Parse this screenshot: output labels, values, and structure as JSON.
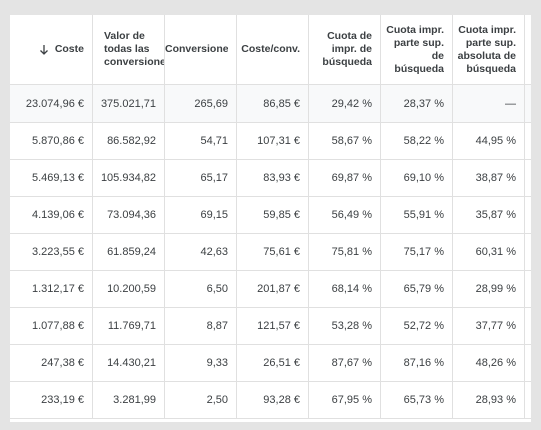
{
  "table": {
    "headers": [
      "Coste",
      "Valor de todas las conversiones",
      "Conversiones",
      "Coste/conv.",
      "Cuota de impr. de búsqueda",
      "Cuota impr. parte sup. de búsqueda",
      "Cuota impr. parte sup. absoluta de búsqueda"
    ],
    "rows": [
      [
        "23.074,96 €",
        "375.021,71",
        "265,69",
        "86,85 €",
        "29,42 %",
        "28,37 %",
        "—"
      ],
      [
        "5.870,86 €",
        "86.582,92",
        "54,71",
        "107,31 €",
        "58,67 %",
        "58,22 %",
        "44,95 %"
      ],
      [
        "5.469,13 €",
        "105.934,82",
        "65,17",
        "83,93 €",
        "69,87 %",
        "69,10 %",
        "38,87 %"
      ],
      [
        "4.139,06 €",
        "73.094,36",
        "69,15",
        "59,85 €",
        "56,49 %",
        "55,91 %",
        "35,87 %"
      ],
      [
        "3.223,55 €",
        "61.859,24",
        "42,63",
        "75,61 €",
        "75,81 %",
        "75,17 %",
        "60,31 %"
      ],
      [
        "1.312,17 €",
        "10.200,59",
        "6,50",
        "201,87 €",
        "68,14 %",
        "65,79 %",
        "28,99 %"
      ],
      [
        "1.077,88 €",
        "11.769,71",
        "8,87",
        "121,57 €",
        "53,28 %",
        "52,72 %",
        "37,77 %"
      ],
      [
        "247,38 €",
        "14.430,21",
        "9,33",
        "26,51 €",
        "87,67 %",
        "87,16 %",
        "48,26 %"
      ],
      [
        "233,19 €",
        "3.281,99",
        "2,50",
        "93,28 €",
        "67,95 %",
        "65,73 %",
        "28,93 %"
      ]
    ]
  }
}
